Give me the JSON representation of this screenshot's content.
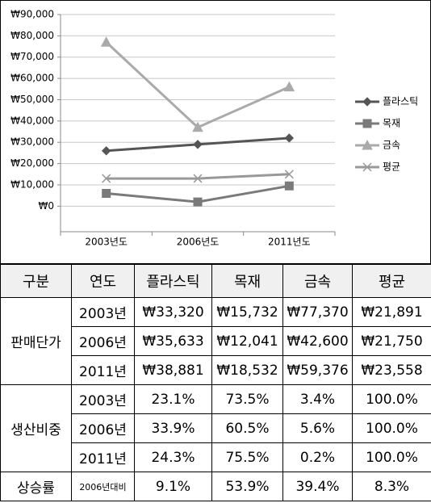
{
  "chart_data": {
    "type": "line",
    "categories": [
      "2003년도",
      "2006년도",
      "2011년도"
    ],
    "series": [
      {
        "name": "플라스틱",
        "color": "#555555",
        "marker": "diamond",
        "values": [
          26000,
          29000,
          32000
        ]
      },
      {
        "name": "목재",
        "color": "#7a7a7a",
        "marker": "square",
        "values": [
          6000,
          2000,
          9500
        ]
      },
      {
        "name": "금속",
        "color": "#aaaaaa",
        "marker": "triangle",
        "values": [
          77000,
          37000,
          56000
        ]
      },
      {
        "name": "평균",
        "color": "#999999",
        "marker": "x",
        "values": [
          13000,
          13000,
          15000
        ]
      }
    ],
    "ylim": [
      -12000,
      90000
    ],
    "yticks": [
      {
        "value": 0,
        "label": "₩0"
      },
      {
        "value": 10000,
        "label": "₩10,000"
      },
      {
        "value": 20000,
        "label": "₩20,000"
      },
      {
        "value": 30000,
        "label": "₩30,000"
      },
      {
        "value": 40000,
        "label": "₩40,000"
      },
      {
        "value": 50000,
        "label": "₩50,000"
      },
      {
        "value": 60000,
        "label": "₩60,000"
      },
      {
        "value": 70000,
        "label": "₩70,000"
      },
      {
        "value": 80000,
        "label": "₩80,000"
      },
      {
        "value": 90000,
        "label": "₩90,000"
      }
    ],
    "grid": true,
    "legend": "right"
  },
  "table": {
    "header": [
      "구분",
      "연도",
      "플라스틱",
      "목재",
      "금속",
      "평균"
    ],
    "groups": [
      {
        "label": "판매단가",
        "rows": [
          {
            "year": "2003년",
            "values": [
              "₩33,320",
              "₩15,732",
              "₩77,370",
              "₩21,891"
            ]
          },
          {
            "year": "2006년",
            "values": [
              "₩35,633",
              "₩12,041",
              "₩42,600",
              "₩21,750"
            ]
          },
          {
            "year": "2011년",
            "values": [
              "₩38,881",
              "₩18,532",
              "₩59,376",
              "₩23,558"
            ]
          }
        ]
      },
      {
        "label": "생산비중",
        "rows": [
          {
            "year": "2003년",
            "values": [
              "23.1%",
              "73.5%",
              "3.4%",
              "100.0%"
            ]
          },
          {
            "year": "2006년",
            "values": [
              "33.9%",
              "60.5%",
              "5.6%",
              "100.0%"
            ]
          },
          {
            "year": "2011년",
            "values": [
              "24.3%",
              "75.5%",
              "0.2%",
              "100.0%"
            ]
          }
        ]
      }
    ],
    "footer": {
      "label": "상승률",
      "year": "2006년대비",
      "values": [
        "9.1%",
        "53.9%",
        "39.4%",
        "8.3%"
      ]
    }
  }
}
